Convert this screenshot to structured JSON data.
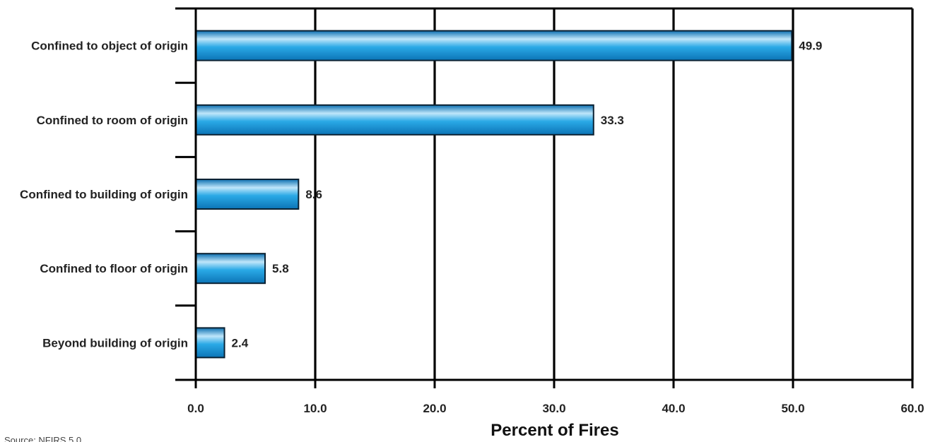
{
  "chart_data": {
    "type": "bar",
    "orientation": "horizontal",
    "categories": [
      "Confined to object of origin",
      "Confined to room of origin",
      "Confined to building of origin",
      "Confined to floor of origin",
      "Beyond building of origin"
    ],
    "values": [
      49.9,
      33.3,
      8.6,
      5.8,
      2.4
    ],
    "value_labels": [
      "49.9",
      "33.3",
      "8.6",
      "5.8",
      "2.4"
    ],
    "xlabel": "Percent of Fires",
    "ylabel": "",
    "xlim": [
      0,
      60
    ],
    "xticks": [
      "0.0",
      "10.0",
      "20.0",
      "30.0",
      "40.0",
      "50.0",
      "60.0"
    ],
    "grid": "vertical",
    "bar_color": "#1fa3e0",
    "bar_edge_color": "#0b2233",
    "source_note": "Source: NFIRS 5.0"
  }
}
